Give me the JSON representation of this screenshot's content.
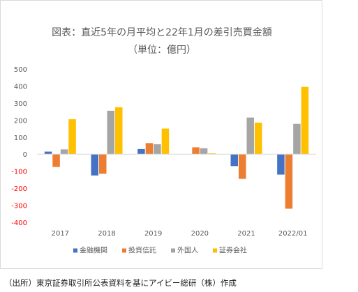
{
  "chart_data": {
    "type": "bar",
    "title": "図表：直近5年の月平均と22年1月の差引売買金額",
    "subtitle": "（単位：億円）",
    "categories": [
      "2017",
      "2018",
      "2019",
      "2020",
      "2021",
      "2022/01"
    ],
    "series": [
      {
        "name": "金融機関",
        "color": "#4472c4",
        "values": [
          15,
          -125,
          30,
          0,
          -70,
          -120
        ]
      },
      {
        "name": "投資信託",
        "color": "#ed7d31",
        "values": [
          -75,
          -115,
          65,
          40,
          -145,
          -320
        ]
      },
      {
        "name": "外国人",
        "color": "#a5a5a5",
        "values": [
          28,
          255,
          58,
          35,
          215,
          178
        ]
      },
      {
        "name": "証券会社",
        "color": "#ffc000",
        "values": [
          205,
          275,
          150,
          5,
          185,
          395
        ]
      }
    ],
    "yticks": [
      "500",
      "400",
      "300",
      "200",
      "100",
      "0",
      "-100",
      "-200",
      "-300",
      "-400"
    ],
    "ylim": [
      -400,
      500
    ],
    "negative_tick_color": "#ff0000",
    "grid": false,
    "legend_position": "bottom"
  },
  "source_note": "（出所）東京証券取引所公表資料を基にアイビー総研（株）作成"
}
